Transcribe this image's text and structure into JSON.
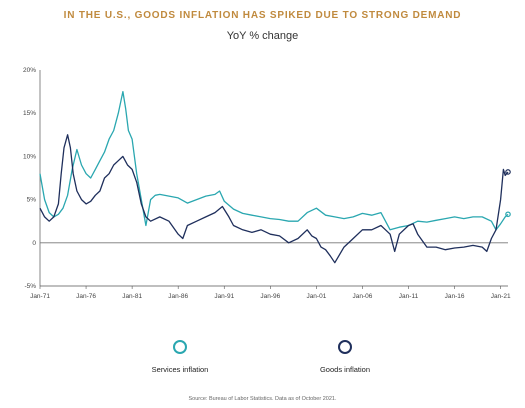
{
  "chart_data": {
    "type": "line",
    "title": "IN THE U.S., GOODS INFLATION HAS SPIKED DUE TO STRONG DEMAND",
    "subtitle": "YoY % change",
    "xlabel": "",
    "ylabel": "",
    "x_ticks": [
      "Jan-71",
      "Jan-76",
      "Jan-81",
      "Jan-86",
      "Jan-91",
      "Jan-96",
      "Jan-01",
      "Jan-06",
      "Jan-11",
      "Jan-16",
      "Jan-21"
    ],
    "y_ticks": [
      "-5%",
      "0",
      "5%",
      "10%",
      "15%",
      "20%"
    ],
    "xlim": [
      1971,
      2021.8
    ],
    "ylim": [
      -5,
      20
    ],
    "grid": false,
    "legend_position": "bottom",
    "series": [
      {
        "name": "Services inflation",
        "color": "#2aa7b0",
        "x": [
          1971.0,
          1971.5,
          1972.0,
          1972.5,
          1973.0,
          1973.5,
          1974.0,
          1974.5,
          1975.0,
          1975.5,
          1976.0,
          1976.5,
          1977.0,
          1977.5,
          1978.0,
          1978.5,
          1979.0,
          1979.5,
          1980.0,
          1980.3,
          1980.6,
          1981.0,
          1981.5,
          1982.0,
          1982.5,
          1983.0,
          1983.5,
          1984.0,
          1985.0,
          1986.0,
          1987.0,
          1988.0,
          1989.0,
          1990.0,
          1990.5,
          1991.0,
          1992.0,
          1993.0,
          1994.0,
          1995.0,
          1996.0,
          1997.0,
          1998.0,
          1999.0,
          2000.0,
          2001.0,
          2002.0,
          2003.0,
          2004.0,
          2005.0,
          2006.0,
          2007.0,
          2008.0,
          2009.0,
          2010.0,
          2011.0,
          2012.0,
          2013.0,
          2014.0,
          2015.0,
          2016.0,
          2017.0,
          2018.0,
          2019.0,
          2020.0,
          2020.5,
          2021.0,
          2021.5,
          2021.8
        ],
        "values": [
          8.0,
          5.0,
          3.5,
          3.0,
          3.3,
          4.0,
          5.5,
          8.5,
          10.8,
          9.0,
          8.0,
          7.5,
          8.5,
          9.5,
          10.5,
          12.0,
          13.0,
          15.0,
          17.5,
          15.5,
          13.0,
          12.0,
          8.0,
          5.0,
          2.0,
          5.0,
          5.5,
          5.6,
          5.4,
          5.2,
          4.6,
          5.0,
          5.4,
          5.6,
          6.0,
          4.8,
          3.9,
          3.4,
          3.2,
          3.0,
          2.8,
          2.7,
          2.5,
          2.5,
          3.5,
          4.0,
          3.2,
          3.0,
          2.8,
          3.0,
          3.4,
          3.2,
          3.5,
          1.5,
          1.8,
          2.0,
          2.5,
          2.4,
          2.6,
          2.8,
          3.0,
          2.8,
          3.0,
          3.0,
          2.5,
          1.5,
          2.2,
          3.0,
          3.3
        ]
      },
      {
        "name": "Goods inflation",
        "color": "#1f2f5c",
        "x": [
          1971.0,
          1971.5,
          1972.0,
          1972.5,
          1973.0,
          1973.3,
          1973.6,
          1974.0,
          1974.3,
          1974.6,
          1975.0,
          1975.5,
          1976.0,
          1976.5,
          1977.0,
          1977.5,
          1978.0,
          1978.5,
          1979.0,
          1979.5,
          1980.0,
          1980.5,
          1981.0,
          1981.5,
          1982.0,
          1982.5,
          1983.0,
          1984.0,
          1985.0,
          1986.0,
          1986.5,
          1987.0,
          1988.0,
          1989.0,
          1990.0,
          1990.8,
          1991.5,
          1992.0,
          1993.0,
          1994.0,
          1995.0,
          1996.0,
          1997.0,
          1998.0,
          1999.0,
          2000.0,
          2000.5,
          2001.0,
          2001.5,
          2002.0,
          2002.5,
          2003.0,
          2004.0,
          2005.0,
          2006.0,
          2007.0,
          2008.0,
          2008.5,
          2009.0,
          2009.5,
          2010.0,
          2011.0,
          2011.5,
          2012.0,
          2013.0,
          2014.0,
          2015.0,
          2016.0,
          2017.0,
          2018.0,
          2019.0,
          2019.5,
          2020.0,
          2020.5,
          2021.0,
          2021.3,
          2021.5,
          2021.8
        ],
        "values": [
          4.0,
          3.0,
          2.5,
          3.0,
          4.5,
          8.0,
          11.0,
          12.5,
          11.0,
          8.0,
          6.0,
          5.0,
          4.5,
          4.8,
          5.5,
          6.0,
          7.5,
          8.0,
          9.0,
          9.5,
          10.0,
          9.0,
          8.5,
          7.0,
          4.5,
          3.0,
          2.5,
          3.0,
          2.5,
          1.0,
          0.5,
          2.0,
          2.5,
          3.0,
          3.5,
          4.2,
          3.0,
          2.0,
          1.5,
          1.2,
          1.5,
          1.0,
          0.8,
          0.0,
          0.5,
          1.5,
          0.8,
          0.5,
          -0.5,
          -0.8,
          -1.5,
          -2.3,
          -0.5,
          0.5,
          1.5,
          1.5,
          2.0,
          1.5,
          1.0,
          -1.0,
          1.0,
          2.0,
          2.2,
          1.0,
          -0.5,
          -0.5,
          -0.8,
          -0.6,
          -0.5,
          -0.3,
          -0.5,
          -1.0,
          0.5,
          1.5,
          5.0,
          8.5,
          7.8,
          8.2
        ]
      }
    ]
  },
  "source_note": "Source: Bureau of Labor Statistics. Data as of October 2021."
}
